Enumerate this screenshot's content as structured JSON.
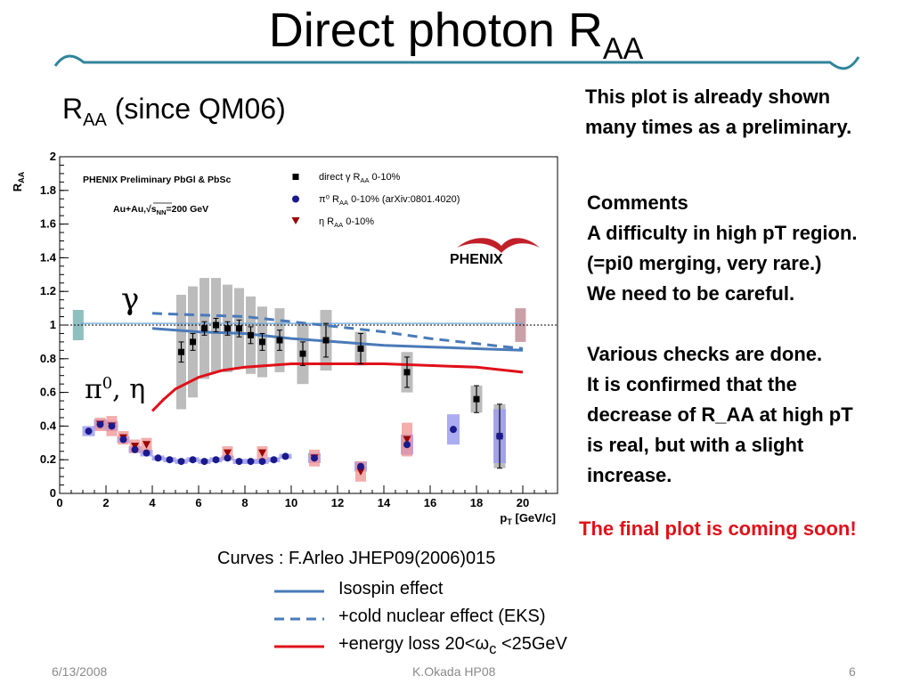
{
  "slide": {
    "title_main": "Direct photon R",
    "title_sub": "AA",
    "subtitle_main": "R",
    "subtitle_sub": "AA",
    "subtitle_rest": " (since QM06)",
    "note_prelim_1": "This plot is already shown",
    "note_prelim_2": "many times as a preliminary.",
    "comments": [
      "Comments",
      "A difficulty in high pT region.",
      "(=pi0 merging, very rare.)",
      "We need to be careful.",
      "",
      "Various checks are done.",
      "It is confirmed that the",
      "decrease of R_AA at high pT",
      "is real, but with a slight",
      "increase."
    ],
    "final_soon": "The final plot is coming soon!",
    "curves_title": "Curves : F.Arleo JHEP09(2006)015",
    "curves_legend": [
      {
        "label": "Isospin effect",
        "color": "#4a7ab8",
        "style": "solid"
      },
      {
        "label": "+cold nuclear effect (EKS)",
        "color": "#4a7ab8",
        "style": "dashed"
      },
      {
        "label": "+energy loss 20<ω",
        "sub": "c",
        "rest": " <25GeV",
        "color": "#e0101a",
        "style": "solid"
      }
    ],
    "footer_date": "6/13/2008",
    "footer_center": "K.Okada HP08",
    "footer_page": "6",
    "gamma_label": "γ",
    "pi_eta_label_a": "π",
    "pi_eta_label_sup": "0",
    "pi_eta_label_b": ", η",
    "accent_color": "#31849b"
  },
  "chart_data": {
    "type": "scatter",
    "xlabel": "p_T [GeV/c]",
    "ylabel": "R_AA",
    "xlim": [
      0,
      21.5
    ],
    "ylim": [
      0,
      2
    ],
    "x_ticks": [
      0,
      2,
      4,
      6,
      8,
      10,
      12,
      14,
      16,
      18,
      20
    ],
    "y_ticks": [
      0,
      0.2,
      0.4,
      0.6,
      0.8,
      1,
      1.2,
      1.4,
      1.6,
      1.8,
      2
    ],
    "y_tick_labels": [
      "0",
      "0.2",
      "0.4",
      "0.6",
      "0.8",
      "1",
      "1.2",
      "1.4",
      "1.6",
      "1.8",
      "2"
    ],
    "annotations": {
      "experiment": "PHENIX Preliminary PbGl & PbSc",
      "system_a": "Au+Au,",
      "system_b": "√s",
      "system_sub": "NN",
      "system_c": "=200 GeV",
      "logo": "PHENIX"
    },
    "legend": [
      {
        "text": "direct γ R",
        "sub": "AA",
        "rest": " 0-10%",
        "marker": "square",
        "color": "#000000"
      },
      {
        "text": "π⁰ R",
        "sub": "AA",
        "rest": " 0-10% (arXiv:0801.4020)",
        "marker": "circle",
        "color": "#1a1a8c"
      },
      {
        "text": "η R",
        "sub": "AA",
        "rest": " 0-10%",
        "marker": "triangle",
        "color": "#990000"
      }
    ],
    "reference_line": 1.0,
    "norm_boxes": [
      {
        "x": 0.8,
        "y": 1.0,
        "err": 0.09,
        "color": "#8fbfbf"
      },
      {
        "x": 19.9,
        "y": 1.0,
        "err": 0.1,
        "color": "#c9a0a8"
      }
    ],
    "series": [
      {
        "name": "direct γ R_AA 0-10%",
        "marker": "square",
        "color": "#000000",
        "points": [
          {
            "x": 5.25,
            "y": 0.84,
            "stat": 0.06,
            "sys": 0.34
          },
          {
            "x": 5.75,
            "y": 0.9,
            "stat": 0.05,
            "sys": 0.33
          },
          {
            "x": 6.25,
            "y": 0.98,
            "stat": 0.04,
            "sys": 0.3
          },
          {
            "x": 6.75,
            "y": 1.0,
            "stat": 0.04,
            "sys": 0.28
          },
          {
            "x": 7.25,
            "y": 0.98,
            "stat": 0.04,
            "sys": 0.26
          },
          {
            "x": 7.75,
            "y": 0.98,
            "stat": 0.05,
            "sys": 0.24
          },
          {
            "x": 8.25,
            "y": 0.94,
            "stat": 0.05,
            "sys": 0.23
          },
          {
            "x": 8.75,
            "y": 0.9,
            "stat": 0.05,
            "sys": 0.21
          },
          {
            "x": 9.5,
            "y": 0.91,
            "stat": 0.06,
            "sys": 0.19
          },
          {
            "x": 10.5,
            "y": 0.83,
            "stat": 0.07,
            "sys": 0.18
          },
          {
            "x": 11.5,
            "y": 0.91,
            "stat": 0.1,
            "sys": 0.18
          },
          {
            "x": 13.0,
            "y": 0.86,
            "stat": 0.09,
            "sys": 0.1
          },
          {
            "x": 15.0,
            "y": 0.72,
            "stat": 0.09,
            "sys": 0.12
          },
          {
            "x": 18.0,
            "y": 0.56,
            "stat": 0.08,
            "sys": 0.08
          },
          {
            "x": 19.0,
            "y": 0.34,
            "stat": 0.19,
            "sys": 0.19
          }
        ]
      },
      {
        "name": "π0 R_AA 0-10% (arXiv:0801.4020)",
        "marker": "circle",
        "color": "#1a1a8c",
        "points": [
          {
            "x": 1.25,
            "y": 0.37,
            "sys": 0.03
          },
          {
            "x": 1.75,
            "y": 0.41,
            "sys": 0.03
          },
          {
            "x": 2.25,
            "y": 0.4,
            "sys": 0.03
          },
          {
            "x": 2.75,
            "y": 0.32,
            "sys": 0.02
          },
          {
            "x": 3.25,
            "y": 0.26,
            "sys": 0.02
          },
          {
            "x": 3.75,
            "y": 0.24,
            "sys": 0.02
          },
          {
            "x": 4.25,
            "y": 0.21,
            "sys": 0.015
          },
          {
            "x": 4.75,
            "y": 0.2,
            "sys": 0.015
          },
          {
            "x": 5.25,
            "y": 0.19,
            "sys": 0.015
          },
          {
            "x": 5.75,
            "y": 0.2,
            "sys": 0.015
          },
          {
            "x": 6.25,
            "y": 0.19,
            "sys": 0.015
          },
          {
            "x": 6.75,
            "y": 0.2,
            "sys": 0.015
          },
          {
            "x": 7.25,
            "y": 0.21,
            "sys": 0.015
          },
          {
            "x": 7.75,
            "y": 0.19,
            "sys": 0.015
          },
          {
            "x": 8.25,
            "y": 0.19,
            "sys": 0.015
          },
          {
            "x": 8.75,
            "y": 0.19,
            "sys": 0.015
          },
          {
            "x": 9.25,
            "y": 0.2,
            "sys": 0.015
          },
          {
            "x": 9.75,
            "y": 0.22,
            "sys": 0.015
          },
          {
            "x": 11.0,
            "y": 0.21,
            "sys": 0.03
          },
          {
            "x": 13.0,
            "y": 0.16,
            "sys": 0.03
          },
          {
            "x": 15.0,
            "y": 0.29,
            "sys": 0.06
          },
          {
            "x": 17.0,
            "y": 0.38,
            "sys": 0.09
          },
          {
            "x": 19.0,
            "y": 0.34,
            "sys": 0.16
          }
        ]
      },
      {
        "name": "η R_AA 0-10%",
        "marker": "triangle",
        "color": "#990000",
        "points": [
          {
            "x": 1.75,
            "y": 0.41,
            "sys": 0.04
          },
          {
            "x": 2.25,
            "y": 0.4,
            "sys": 0.06
          },
          {
            "x": 2.75,
            "y": 0.33,
            "sys": 0.04
          },
          {
            "x": 3.25,
            "y": 0.28,
            "sys": 0.04
          },
          {
            "x": 3.75,
            "y": 0.29,
            "sys": 0.04
          },
          {
            "x": 7.25,
            "y": 0.24,
            "sys": 0.04
          },
          {
            "x": 8.75,
            "y": 0.24,
            "sys": 0.04
          },
          {
            "x": 11.0,
            "y": 0.21,
            "sys": 0.05
          },
          {
            "x": 13.0,
            "y": 0.13,
            "sys": 0.06
          },
          {
            "x": 15.0,
            "y": 0.32,
            "sys": 0.1
          }
        ]
      }
    ],
    "curves": [
      {
        "name": "Isospin effect",
        "color": "#4a7ab8",
        "style": "solid",
        "x": [
          4,
          6,
          8,
          10,
          12,
          14,
          16,
          18,
          20
        ],
        "y": [
          0.98,
          0.96,
          0.95,
          0.92,
          0.9,
          0.88,
          0.87,
          0.86,
          0.85
        ]
      },
      {
        "name": "+cold nuclear effect (EKS)",
        "color": "#4a7ab8",
        "style": "dashed",
        "x": [
          4,
          6,
          8,
          10,
          12,
          14,
          16,
          18,
          20
        ],
        "y": [
          1.07,
          1.06,
          1.05,
          1.02,
          0.99,
          0.96,
          0.92,
          0.89,
          0.86
        ]
      },
      {
        "name": "+energy loss 20<ωc <25GeV",
        "color": "#e0101a",
        "style": "solid",
        "x": [
          4,
          4.5,
          5,
          6,
          7,
          8,
          9,
          10,
          12,
          14,
          16,
          18,
          20
        ],
        "y": [
          0.49,
          0.56,
          0.62,
          0.69,
          0.73,
          0.75,
          0.76,
          0.77,
          0.77,
          0.77,
          0.76,
          0.75,
          0.72
        ]
      }
    ]
  }
}
